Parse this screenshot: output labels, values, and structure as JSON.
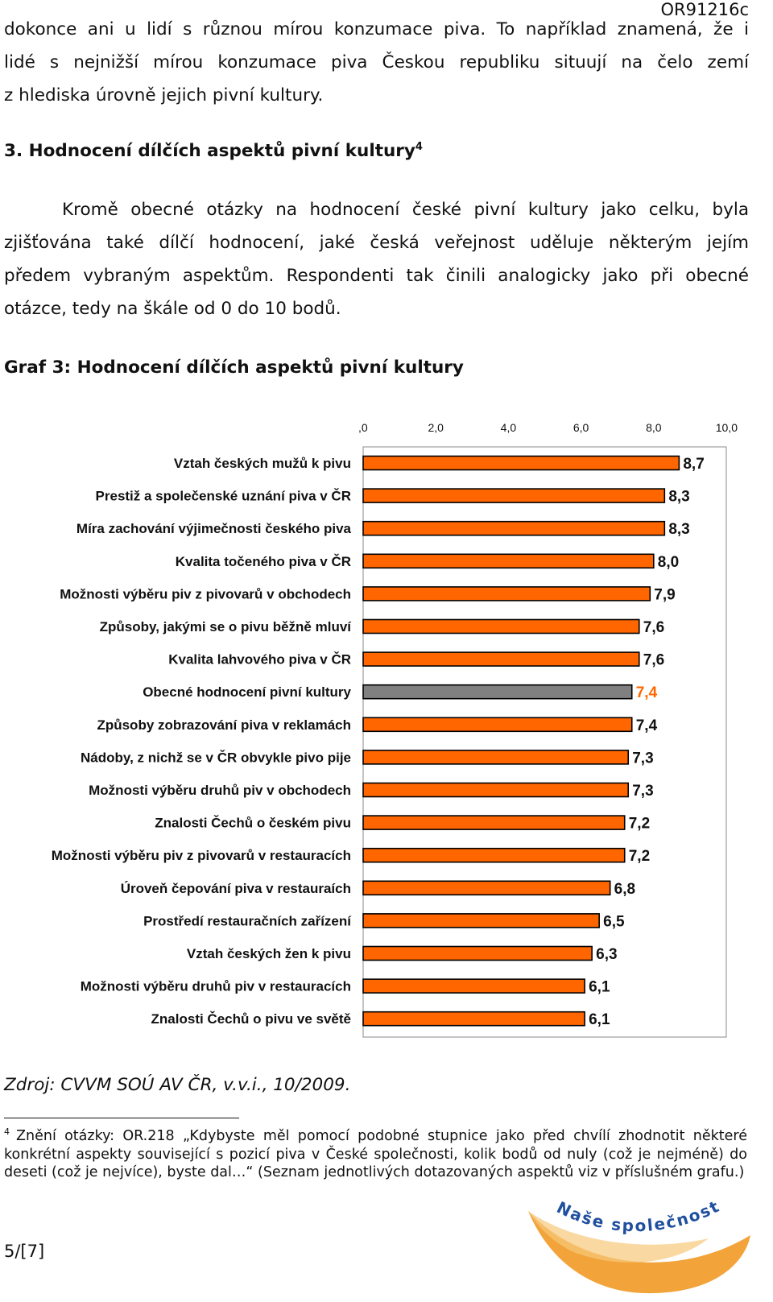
{
  "header": {
    "doc_code": "OR91216c"
  },
  "intro": {
    "lines": [
      "dokonce ani u lidí s různou mírou konzumace piva. To například znamená, že i",
      "lidé s nejnižší mírou konzumace piva Českou republiku situují na čelo zemí",
      "z hlediska úrovně jejich pivní kultury."
    ]
  },
  "section": {
    "number": "3.",
    "title": "Hodnocení dílčích aspektů pivní kultury",
    "footnote_ref": "4"
  },
  "paragraph": {
    "lines": [
      "Kromě obecné otázky na hodnocení české pivní kultury jako celku, byla",
      "zjišťována také dílčí hodnocení, jaké česká veřejnost uděluje některým jejím",
      "předem vybraným aspektům. Respondenti tak činili analogicky jako při obecné",
      "otázce, tedy na škále od 0 do 10 bodů."
    ]
  },
  "graph_title": "Graf 3: Hodnocení dílčích aspektů pivní kultury",
  "chart_data": {
    "type": "bar",
    "orientation": "horizontal",
    "title": "Graf 3: Hodnocení dílčích aspektů pivní kultury",
    "xlim": [
      0,
      10
    ],
    "ticks": [
      ",0",
      "2,0",
      "4,0",
      "6,0",
      "8,0",
      "10,0"
    ],
    "categories": [
      "Vztah českých mužů k pivu",
      "Prestiž a společenské uznání piva v ČR",
      "Míra zachování výjimečnosti českého piva",
      "Kvalita točeného piva v ČR",
      "Možnosti výběru piv z pivovarů v obchodech",
      "Způsoby, jakými se o pivu běžně mluví",
      "Kvalita lahvového piva v ČR",
      "Obecné hodnocení pivní kultury",
      "Způsoby zobrazování piva v reklamách",
      "Nádoby, z nichž se v ČR obvykle pivo pije",
      "Možnosti výběru druhů piv v obchodech",
      "Znalosti Čechů o českém pivu",
      "Možnosti výběru piv z pivovarů v restauracích",
      "Úroveň čepování piva v restauraích",
      "Prostředí restauračních zařízení",
      "Vztah českých žen k pivu",
      "Možnosti výběru druhů piv v restauracích",
      "Znalosti Čechů o pivu ve světě"
    ],
    "values": [
      8.7,
      8.3,
      8.3,
      8.0,
      7.9,
      7.6,
      7.6,
      7.4,
      7.4,
      7.3,
      7.3,
      7.2,
      7.2,
      6.8,
      6.5,
      6.3,
      6.1,
      6.1
    ],
    "value_labels": [
      "8,7",
      "8,3",
      "8,3",
      "8,0",
      "7,9",
      "7,6",
      "7,6",
      "7,4",
      "7,4",
      "7,3",
      "7,3",
      "7,2",
      "7,2",
      "6,8",
      "6,5",
      "6,3",
      "6,1",
      "6,1"
    ],
    "highlight_index": 7,
    "colors": {
      "bar": "#ff6600",
      "highlight_bar": "#808080",
      "highlight_label": "#ff6600",
      "label": "#111111"
    }
  },
  "source": "Zdroj: CVVM SOÚ AV ČR, v.v.i., 10/2009.",
  "footnote": {
    "number": "4",
    "text": "Znění otázky: OR.218 „Kdybyste měl pomocí podobné stupnice jako před chvílí zhodnotit některé konkrétní aspekty související s pozicí piva v České společnosti, kolik bodů od nuly (což je nejméně) do deseti (což je nejvíce), byste dal…“ (Seznam jednotlivých dotazovaných aspektů viz v příslušném grafu.)"
  },
  "page_number": "5/[7]",
  "logo": {
    "text": "Naše společnost"
  }
}
